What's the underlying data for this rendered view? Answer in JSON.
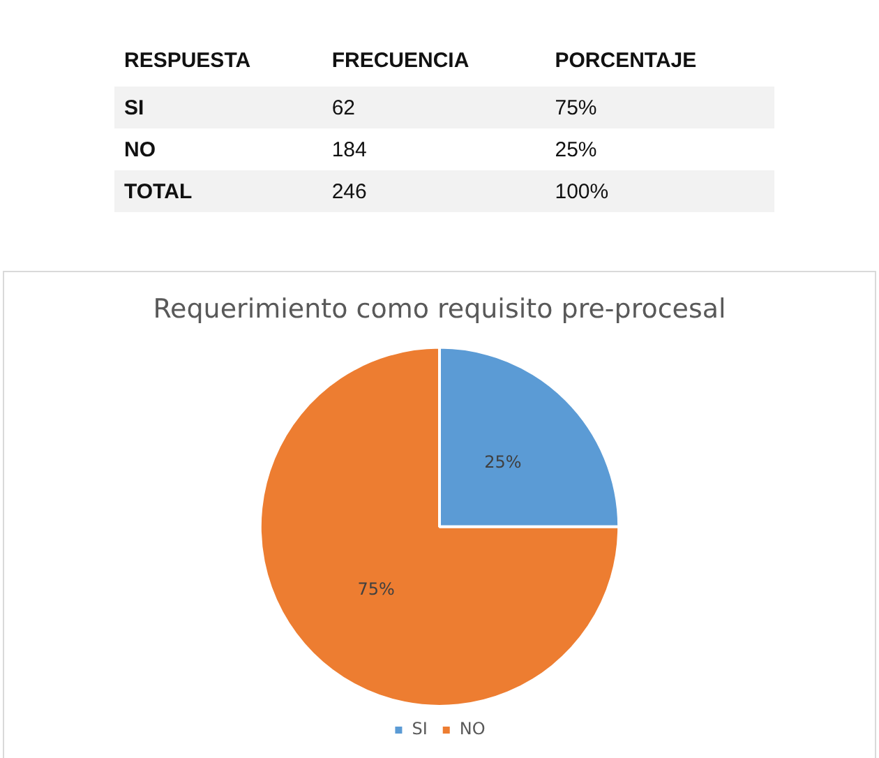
{
  "chart_data": [
    {
      "type": "other",
      "data_labels": true,
      "xlabel": "RESPUESTA",
      "categories": [
        "SI",
        "NO",
        "TOTAL"
      ],
      "series": [
        {
          "name": "FRECUENCIA",
          "values": [
            62,
            184,
            246
          ]
        },
        {
          "name": "PORCENTAJE",
          "values": [
            75,
            25,
            100
          ],
          "value_labels": [
            "75%",
            "25%",
            "100%"
          ]
        }
      ]
    },
    {
      "type": "pie",
      "title": "Requerimiento como requisito pre-procesal",
      "categories": [
        "SI",
        "NO"
      ],
      "values": [
        25,
        75
      ],
      "colors": [
        "#5b9bd5",
        "#ed7d31"
      ],
      "value_labels": [
        "25%",
        "75%"
      ],
      "legend": "bottom"
    }
  ]
}
